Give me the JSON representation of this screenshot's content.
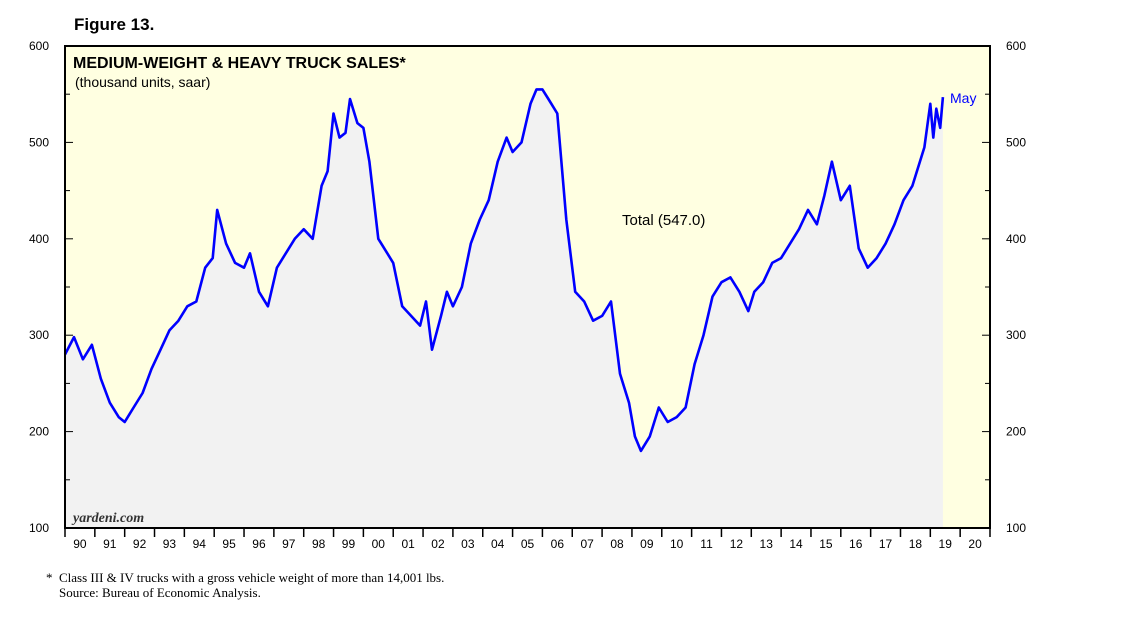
{
  "figure_label": "Figure 13.",
  "chart_data": {
    "type": "line",
    "title": "MEDIUM-WEIGHT & HEAVY TRUCK SALES*",
    "subtitle": "(thousand units, saar)",
    "xlabel": "",
    "ylabel": "",
    "ylim": [
      100,
      600
    ],
    "xlim": [
      1990,
      2021
    ],
    "y_ticks": [
      100,
      200,
      300,
      400,
      500,
      600
    ],
    "x_tick_labels": [
      "90",
      "91",
      "92",
      "93",
      "94",
      "95",
      "96",
      "97",
      "98",
      "99",
      "00",
      "01",
      "02",
      "03",
      "04",
      "05",
      "06",
      "07",
      "08",
      "09",
      "10",
      "11",
      "12",
      "13",
      "14",
      "15",
      "16",
      "17",
      "18",
      "19",
      "20"
    ],
    "grid": false,
    "legend": "none",
    "series": [
      {
        "label": "Total (547.0)",
        "end_label": "May",
        "color": "#0000ff",
        "x": [
          1990.0,
          1990.3,
          1990.6,
          1990.9,
          1991.2,
          1991.5,
          1991.8,
          1992.0,
          1992.3,
          1992.6,
          1992.9,
          1993.2,
          1993.5,
          1993.8,
          1994.1,
          1994.4,
          1994.7,
          1994.95,
          1995.1,
          1995.4,
          1995.7,
          1996.0,
          1996.2,
          1996.5,
          1996.8,
          1997.1,
          1997.4,
          1997.7,
          1998.0,
          1998.3,
          1998.6,
          1998.8,
          1999.0,
          1999.2,
          1999.4,
          1999.55,
          1999.8,
          2000.0,
          2000.2,
          2000.5,
          2000.8,
          2001.0,
          2001.3,
          2001.6,
          2001.9,
          2002.1,
          2002.3,
          2002.6,
          2002.8,
          2003.0,
          2003.3,
          2003.6,
          2003.9,
          2004.2,
          2004.5,
          2004.8,
          2005.0,
          2005.3,
          2005.6,
          2005.8,
          2006.0,
          2006.2,
          2006.5,
          2006.8,
          2007.1,
          2007.4,
          2007.7,
          2008.0,
          2008.3,
          2008.6,
          2008.9,
          2009.1,
          2009.3,
          2009.6,
          2009.9,
          2010.2,
          2010.5,
          2010.8,
          2011.1,
          2011.4,
          2011.7,
          2012.0,
          2012.3,
          2012.6,
          2012.9,
          2013.1,
          2013.4,
          2013.7,
          2014.0,
          2014.3,
          2014.6,
          2014.9,
          2015.2,
          2015.45,
          2015.7,
          2016.0,
          2016.3,
          2016.6,
          2016.9,
          2017.2,
          2017.5,
          2017.8,
          2018.1,
          2018.4,
          2018.6,
          2018.8,
          2019.0,
          2019.1,
          2019.2,
          2019.33,
          2019.42
        ],
        "y": [
          280,
          298,
          275,
          290,
          255,
          230,
          215,
          210,
          225,
          240,
          265,
          285,
          305,
          315,
          330,
          335,
          370,
          380,
          430,
          395,
          375,
          370,
          385,
          345,
          330,
          370,
          385,
          400,
          410,
          400,
          455,
          470,
          530,
          505,
          510,
          545,
          520,
          515,
          480,
          400,
          385,
          375,
          330,
          320,
          310,
          335,
          285,
          320,
          345,
          330,
          350,
          395,
          420,
          440,
          480,
          505,
          490,
          500,
          540,
          555,
          555,
          545,
          530,
          420,
          345,
          335,
          315,
          320,
          335,
          260,
          230,
          195,
          180,
          195,
          225,
          210,
          215,
          225,
          270,
          300,
          340,
          355,
          360,
          345,
          325,
          345,
          355,
          375,
          380,
          395,
          410,
          430,
          415,
          445,
          480,
          440,
          455,
          390,
          370,
          380,
          395,
          415,
          440,
          455,
          475,
          495,
          540,
          505,
          535,
          515,
          547
        ]
      }
    ],
    "annotations": [
      "yardeni.com"
    ],
    "footnotes": [
      "*  Class III & IV trucks with a gross vehicle weight of more than 14,001 lbs.",
      "    Source: Bureau of Economic Analysis."
    ],
    "colors": {
      "plot_background": "#ffffe1",
      "area_fill": "#f2f2f2",
      "line": "#0000ff"
    }
  }
}
